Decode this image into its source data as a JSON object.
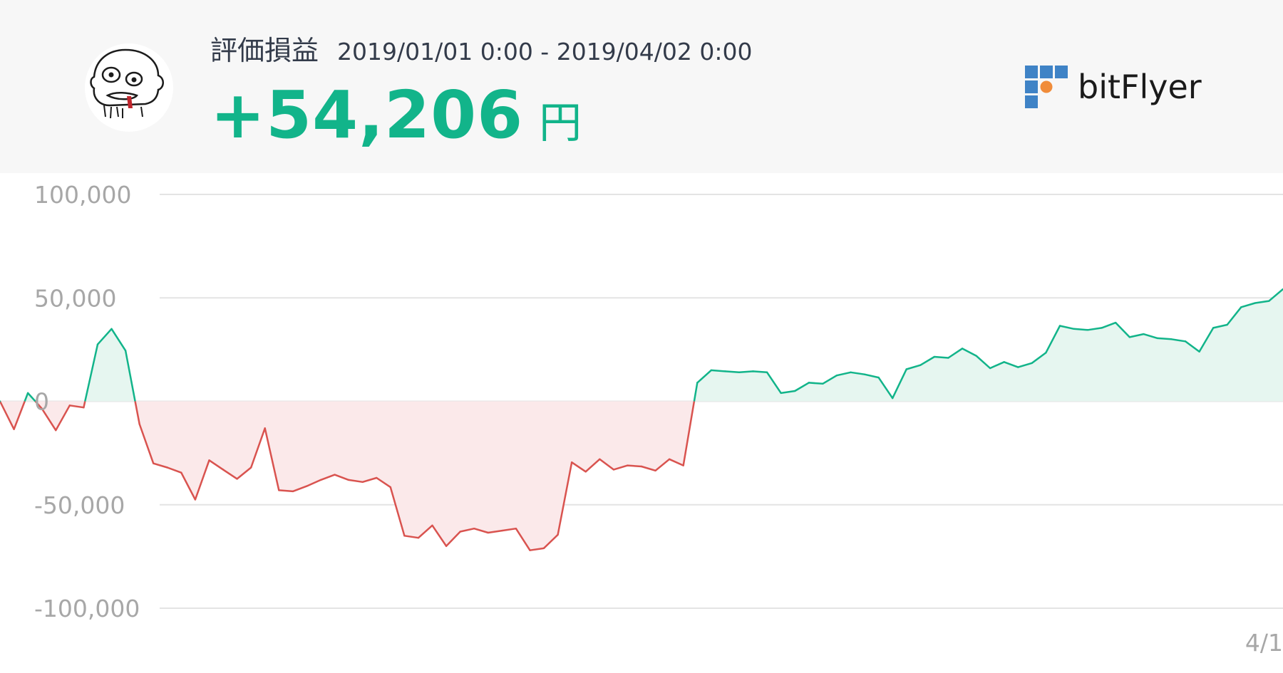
{
  "header": {
    "metric_label": "評価損益",
    "period": "2019/01/01 0:00 - 2019/04/02 0:00",
    "profit_value": "+54,206",
    "currency": "円",
    "brand_name": "bitFlyer"
  },
  "colors": {
    "positive": "#12b48a",
    "negative": "#d9534f",
    "positive_fill": "#e6f6f0",
    "negative_fill": "#fbe9ea",
    "grid": "#e4e4e4",
    "logo_blue": "#3f83c6",
    "logo_orange": "#f08c3a"
  },
  "chart_data": {
    "type": "area",
    "title": "",
    "xlabel": "",
    "ylabel": "",
    "ylim": [
      -100000,
      100000
    ],
    "y_ticks": [
      100000,
      50000,
      0,
      -50000,
      -100000
    ],
    "y_tick_labels": [
      "100,000",
      "50,000",
      "0",
      "-50,000",
      "-100,000"
    ],
    "x_tick_labels": [
      "4/1"
    ],
    "grid": true,
    "legend": "none",
    "series": [
      {
        "values": [
          0,
          -13500,
          4000,
          -3500,
          -14000,
          -2000,
          -3000,
          27500,
          35000,
          24500,
          -11000,
          -30000,
          -32000,
          -34500,
          -47500,
          -28500,
          -33000,
          -37500,
          -32000,
          -13000,
          -43000,
          -43500,
          -41000,
          -38000,
          -35500,
          -38000,
          -39000,
          -37000,
          -41500,
          -65000,
          -66000,
          -60000,
          -70000,
          -63000,
          -61500,
          -63500,
          -62500,
          -61500,
          -72000,
          -71000,
          -64500,
          -29500,
          -34000,
          -28000,
          -33000,
          -31000,
          -31500,
          -33500,
          -28000,
          -31000,
          9000,
          15000,
          14500,
          14000,
          14500,
          14000,
          4000,
          5000,
          9000,
          8500,
          12500,
          14000,
          13000,
          11500,
          1500,
          15500,
          17500,
          21500,
          21000,
          25500,
          22000,
          16000,
          19000,
          16500,
          18500,
          23500,
          36500,
          35000,
          34500,
          35500,
          38000,
          31000,
          32500,
          30500,
          30000,
          29000,
          24000,
          35500,
          37000,
          45500,
          47500,
          48500,
          54206
        ]
      }
    ]
  }
}
